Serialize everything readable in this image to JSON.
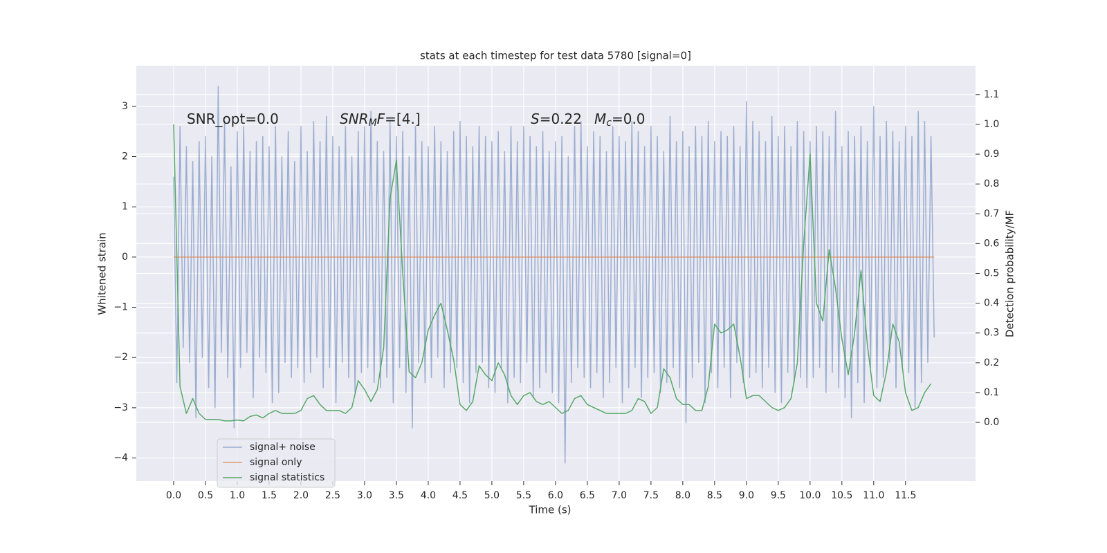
{
  "chart_data": {
    "type": "line",
    "title": "stats at each timestep for test data 5780 [signal=0]",
    "xlabel": "Time (s)",
    "ylabel": "Whitened strain",
    "y2label": "Detection probability/MF",
    "xlim": [
      -0.587,
      12.6
    ],
    "ylim": [
      -4.46,
      3.81
    ],
    "y2lim": [
      -0.197,
      1.197
    ],
    "xticks": [
      {
        "value": 0,
        "label": "0.0"
      },
      0.5,
      {
        "value": 1,
        "label": "1.0"
      },
      1.5,
      {
        "value": 2,
        "label": "2.0"
      },
      2.5,
      {
        "value": 3,
        "label": "3.0"
      },
      3.5,
      {
        "value": 4,
        "label": "4.0"
      },
      4.5,
      {
        "value": 5,
        "label": "5.0"
      },
      5.5,
      {
        "value": 6,
        "label": "6.0"
      },
      6.5,
      {
        "value": 7,
        "label": "7.0"
      },
      7.5,
      {
        "value": 8,
        "label": "8.0"
      },
      8.5,
      {
        "value": 9,
        "label": "9.0"
      },
      9.5,
      {
        "value": 10,
        "label": "10.0"
      },
      10.5,
      {
        "value": 11,
        "label": "11.0"
      },
      11.5
    ],
    "yticks": [
      {
        "value": -4,
        "label": "−4"
      },
      {
        "value": -3,
        "label": "−3"
      },
      {
        "value": -2,
        "label": "−2"
      },
      {
        "value": -1,
        "label": "−1"
      },
      0,
      1,
      2,
      3
    ],
    "y2ticks": [
      {
        "value": 0,
        "label": "0.0"
      },
      0.1,
      0.2,
      0.3,
      0.4,
      0.5,
      0.6,
      0.7,
      0.8,
      0.9,
      {
        "value": 1,
        "label": "1.0"
      },
      1.1
    ],
    "grid": true,
    "legend": "lower left",
    "annotations": [
      {
        "parts": [
          {
            "text": "SNR_opt=0.0"
          }
        ]
      },
      {
        "parts": [
          {
            "text": "SNR",
            "italic": true
          },
          {
            "text": "M",
            "italic": true,
            "sub": true
          },
          {
            "text": "F",
            "italic": true
          },
          {
            "text": "=[4.]"
          }
        ]
      },
      {
        "parts": [
          {
            "text": "S",
            "italic": true
          },
          {
            "text": "=0.22"
          }
        ]
      },
      {
        "parts": [
          {
            "text": "M",
            "italic": true
          },
          {
            "text": "c",
            "italic": true,
            "sub": true
          },
          {
            "text": "=0.0"
          }
        ]
      }
    ],
    "series": [
      {
        "name": "signal+ noise",
        "color": "#4c72b0",
        "opacity": 0.5,
        "x": [
          0,
          0.05,
          0.1,
          0.15,
          0.2,
          0.25,
          0.3,
          0.35,
          0.4,
          0.45,
          0.5,
          0.55,
          0.6,
          0.65,
          0.7,
          0.75,
          0.8,
          0.85,
          0.9,
          0.95,
          1,
          1.05,
          1.1,
          1.15,
          1.2,
          1.25,
          1.3,
          1.35,
          1.4,
          1.45,
          1.5,
          1.55,
          1.6,
          1.65,
          1.7,
          1.75,
          1.8,
          1.85,
          1.9,
          1.95,
          2,
          2.05,
          2.1,
          2.15,
          2.2,
          2.25,
          2.3,
          2.35,
          2.4,
          2.45,
          2.5,
          2.55,
          2.6,
          2.65,
          2.7,
          2.75,
          2.8,
          2.85,
          2.9,
          2.95,
          3,
          3.05,
          3.1,
          3.15,
          3.2,
          3.25,
          3.3,
          3.35,
          3.4,
          3.45,
          3.5,
          3.55,
          3.6,
          3.65,
          3.7,
          3.75,
          3.8,
          3.85,
          3.9,
          3.95,
          4,
          4.05,
          4.1,
          4.15,
          4.2,
          4.25,
          4.3,
          4.35,
          4.4,
          4.45,
          4.5,
          4.55,
          4.6,
          4.65,
          4.7,
          4.75,
          4.8,
          4.85,
          4.9,
          4.95,
          5,
          5.05,
          5.1,
          5.15,
          5.2,
          5.25,
          5.3,
          5.35,
          5.4,
          5.45,
          5.5,
          5.55,
          5.6,
          5.65,
          5.7,
          5.75,
          5.8,
          5.85,
          5.9,
          5.95,
          6,
          6.05,
          6.1,
          6.15,
          6.2,
          6.25,
          6.3,
          6.35,
          6.4,
          6.45,
          6.5,
          6.55,
          6.6,
          6.65,
          6.7,
          6.75,
          6.8,
          6.85,
          6.9,
          6.95,
          7,
          7.05,
          7.1,
          7.15,
          7.2,
          7.25,
          7.3,
          7.35,
          7.4,
          7.45,
          7.5,
          7.55,
          7.6,
          7.65,
          7.7,
          7.75,
          7.8,
          7.85,
          7.9,
          7.95,
          8,
          8.05,
          8.1,
          8.15,
          8.2,
          8.25,
          8.3,
          8.35,
          8.4,
          8.45,
          8.5,
          8.55,
          8.6,
          8.65,
          8.7,
          8.75,
          8.8,
          8.85,
          8.9,
          8.95,
          9,
          9.05,
          9.1,
          9.15,
          9.2,
          9.25,
          9.3,
          9.35,
          9.4,
          9.45,
          9.5,
          9.55,
          9.6,
          9.65,
          9.7,
          9.75,
          9.8,
          9.85,
          9.9,
          9.95,
          10,
          10.05,
          10.1,
          10.15,
          10.2,
          10.25,
          10.3,
          10.35,
          10.4,
          10.45,
          10.5,
          10.55,
          10.6,
          10.65,
          10.7,
          10.75,
          10.8,
          10.85,
          10.9,
          10.95,
          11,
          11.05,
          11.1,
          11.15,
          11.2,
          11.25,
          11.3,
          11.35,
          11.4,
          11.45,
          11.5,
          11.55,
          11.6,
          11.65,
          11.7,
          11.75,
          11.8,
          11.85,
          11.9,
          11.95
        ],
        "values": [
          1.6,
          -2.5,
          2.6,
          -1.8,
          2.2,
          -2.1,
          1.9,
          -3.2,
          2.3,
          -2.0,
          2.4,
          -2.6,
          2.0,
          -3.0,
          3.4,
          -1.9,
          2.7,
          -2.4,
          1.8,
          -3.4,
          2.5,
          -2.2,
          2.6,
          -1.9,
          2.1,
          -2.8,
          2.3,
          -2.0,
          2.4,
          -2.3,
          2.2,
          -2.9,
          2.6,
          -2.7,
          2.0,
          -2.1,
          2.5,
          -2.4,
          1.9,
          -2.2,
          2.6,
          -2.5,
          2.1,
          -2.3,
          2.7,
          -2.0,
          2.3,
          -2.6,
          2.8,
          -2.2,
          2.4,
          -2.9,
          2.2,
          -2.1,
          2.6,
          -2.4,
          2.0,
          -2.7,
          2.5,
          -2.3,
          2.6,
          -2.2,
          2.9,
          -2.5,
          2.3,
          -2.6,
          2.1,
          -2.4,
          2.7,
          -2.9,
          2.4,
          -2.2,
          2.5,
          -2.7,
          2.0,
          -3.4,
          2.6,
          -2.1,
          2.3,
          -2.5,
          2.2,
          -2.4,
          2.6,
          -2.0,
          2.3,
          -2.6,
          2.1,
          -2.3,
          2.5,
          -2.2,
          2.7,
          -2.5,
          2.4,
          -2.9,
          2.2,
          -2.3,
          2.6,
          -2.1,
          2.4,
          -2.6,
          2.3,
          -2.7,
          2.5,
          -2.2,
          2.1,
          -2.9,
          2.6,
          -2.4,
          2.3,
          -2.5,
          2.6,
          -2.1,
          2.4,
          -2.8,
          2.2,
          -2.6,
          2.5,
          -2.3,
          2.1,
          -2.7,
          2.3,
          -2.9,
          2.4,
          -4.1,
          2.0,
          -2.5,
          2.6,
          -2.2,
          2.7,
          -2.4,
          2.2,
          -2.6,
          2.5,
          -2.3,
          2.4,
          -2.8,
          2.1,
          -2.5,
          2.6,
          -2.2,
          2.4,
          -2.9,
          2.3,
          -2.6,
          2.7,
          -2.2,
          2.5,
          -2.8,
          2.2,
          -2.4,
          2.6,
          -2.3,
          2.4,
          -2.7,
          2.1,
          -2.5,
          2.8,
          -2.2,
          2.3,
          -2.6,
          2.5,
          -3.3,
          2.2,
          -2.4,
          2.6,
          -2.1,
          2.4,
          -2.9,
          2.7,
          -2.3,
          2.3,
          -2.6,
          2.5,
          -2.2,
          2.4,
          -2.8,
          2.6,
          -2.1,
          2.2,
          -2.5,
          3.1,
          -2.4,
          2.7,
          -2.3,
          2.5,
          -2.6,
          2.3,
          -2.2,
          2.8,
          -2.7,
          2.4,
          -2.9,
          2.6,
          -2.3,
          2.2,
          -2.5,
          2.7,
          -2.4,
          2.5,
          -2.6,
          2.3,
          -2.4,
          2.6,
          -2.2,
          2.5,
          -2.7,
          2.4,
          -2.3,
          2.9,
          -2.6,
          2.2,
          -2.8,
          2.5,
          -3.2,
          2.4,
          -2.5,
          2.6,
          -2.9,
          2.3,
          -2.2,
          3.0,
          -2.6,
          2.4,
          -2.4,
          2.7,
          -2.1,
          2.5,
          -2.6,
          2.3,
          -2.2,
          2.6,
          -2.3,
          2.4,
          -3.0,
          2.9,
          -2.5,
          2.7,
          -2.1,
          2.4,
          -1.6
        ]
      },
      {
        "name": "signal only",
        "color": "#dd8452",
        "opacity": 0.8,
        "x": [
          0,
          11.95
        ],
        "values": [
          0,
          0
        ]
      },
      {
        "name": "signal statistics",
        "color": "#55a868",
        "opacity": 1,
        "axis": "y2",
        "x": [
          0,
          0.1,
          0.2,
          0.3,
          0.4,
          0.5,
          0.6,
          0.7,
          0.8,
          0.9,
          1,
          1.1,
          1.2,
          1.3,
          1.4,
          1.5,
          1.6,
          1.7,
          1.8,
          1.9,
          2,
          2.1,
          2.2,
          2.3,
          2.4,
          2.5,
          2.6,
          2.7,
          2.8,
          2.9,
          3,
          3.1,
          3.2,
          3.3,
          3.4,
          3.5,
          3.6,
          3.7,
          3.8,
          3.9,
          4,
          4.1,
          4.2,
          4.3,
          4.4,
          4.5,
          4.6,
          4.7,
          4.8,
          4.9,
          5,
          5.1,
          5.2,
          5.3,
          5.4,
          5.5,
          5.6,
          5.7,
          5.8,
          5.9,
          6,
          6.1,
          6.2,
          6.3,
          6.4,
          6.5,
          6.6,
          6.7,
          6.8,
          6.9,
          7,
          7.1,
          7.2,
          7.3,
          7.4,
          7.5,
          7.6,
          7.7,
          7.8,
          7.9,
          8,
          8.1,
          8.2,
          8.3,
          8.4,
          8.5,
          8.6,
          8.7,
          8.8,
          8.9,
          9,
          9.1,
          9.2,
          9.3,
          9.4,
          9.5,
          9.6,
          9.7,
          9.8,
          9.9,
          10,
          10.1,
          10.2,
          10.3,
          10.4,
          10.5,
          10.6,
          10.7,
          10.8,
          10.9,
          11,
          11.1,
          11.2,
          11.3,
          11.4,
          11.5,
          11.6,
          11.7,
          11.8,
          11.9
        ],
        "values": [
          1.0,
          0.12,
          0.03,
          0.08,
          0.03,
          0.01,
          0.01,
          0.01,
          0.005,
          0.005,
          0.008,
          0.005,
          0.02,
          0.025,
          0.015,
          0.03,
          0.04,
          0.03,
          0.03,
          0.03,
          0.04,
          0.08,
          0.09,
          0.06,
          0.04,
          0.04,
          0.04,
          0.03,
          0.05,
          0.14,
          0.11,
          0.07,
          0.11,
          0.25,
          0.75,
          0.88,
          0.5,
          0.17,
          0.15,
          0.2,
          0.31,
          0.36,
          0.4,
          0.31,
          0.21,
          0.06,
          0.04,
          0.07,
          0.19,
          0.16,
          0.14,
          0.2,
          0.16,
          0.09,
          0.06,
          0.09,
          0.1,
          0.07,
          0.06,
          0.07,
          0.05,
          0.03,
          0.04,
          0.08,
          0.09,
          0.06,
          0.05,
          0.04,
          0.03,
          0.03,
          0.03,
          0.03,
          0.04,
          0.08,
          0.07,
          0.03,
          0.05,
          0.18,
          0.15,
          0.08,
          0.06,
          0.06,
          0.04,
          0.04,
          0.12,
          0.33,
          0.3,
          0.31,
          0.33,
          0.22,
          0.08,
          0.09,
          0.09,
          0.07,
          0.05,
          0.04,
          0.05,
          0.08,
          0.2,
          0.6,
          0.9,
          0.4,
          0.34,
          0.58,
          0.45,
          0.28,
          0.16,
          0.3,
          0.51,
          0.26,
          0.09,
          0.07,
          0.17,
          0.33,
          0.27,
          0.1,
          0.04,
          0.05,
          0.1,
          0.13
        ]
      }
    ]
  }
}
